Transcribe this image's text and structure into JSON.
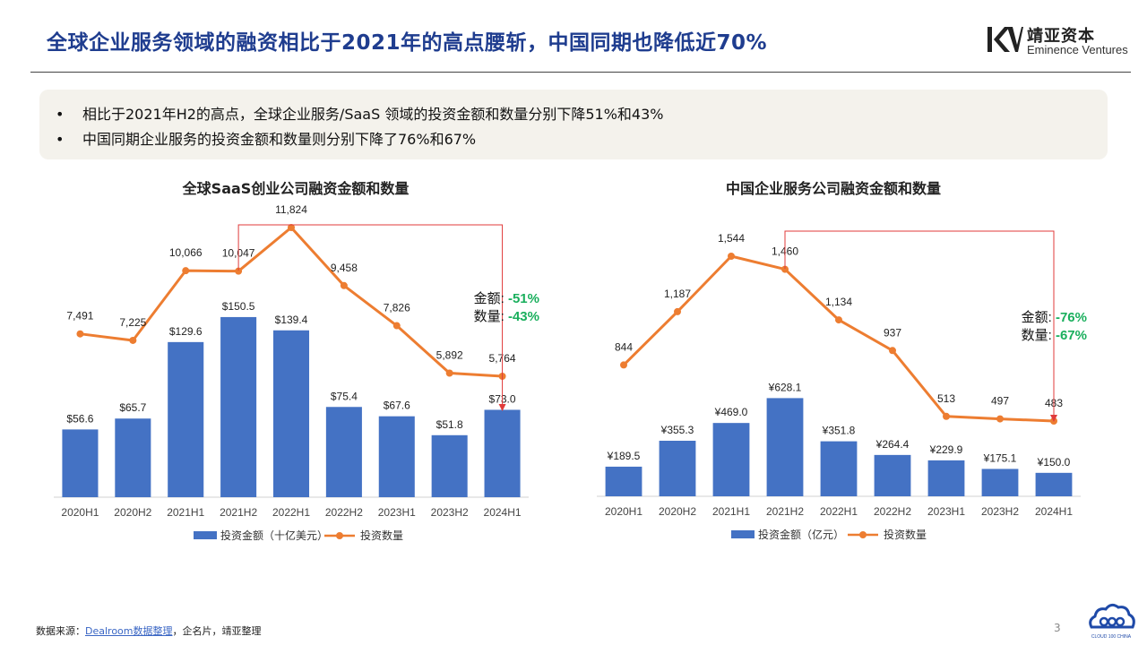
{
  "header": {
    "title": "全球企业服务领域的融资相比于2021年的高点腰斩，中国同期也降低近70%",
    "logo_cn": "靖亚资本",
    "logo_en": "Eminence Ventures"
  },
  "summary": {
    "bullet": "•",
    "points": [
      "相比于2021年H2的高点，全球企业服务/SaaS 领域的投资金额和数量分别下降51%和43%",
      "中国同期企业服务的投资金额和数量则分别下降了76%和67%"
    ]
  },
  "chart_data": [
    {
      "type": "bar",
      "title": "全球SaaS创业公司融资金额和数量",
      "categories": [
        "2020H1",
        "2020H2",
        "2021H1",
        "2021H2",
        "2022H1",
        "2022H2",
        "2023H1",
        "2023H2",
        "2024H1"
      ],
      "series": [
        {
          "name": "投资金额（十亿美元）",
          "type": "bar",
          "values": [
            56.6,
            65.7,
            129.6,
            150.5,
            139.4,
            75.4,
            67.6,
            51.8,
            73.0
          ],
          "labels": [
            "$56.6",
            "$65.7",
            "$129.6",
            "$150.5",
            "$139.4",
            "$75.4",
            "$67.6",
            "$51.8",
            "$73.0"
          ],
          "color": "#4472c4"
        },
        {
          "name": "投资数量",
          "type": "line",
          "values": [
            7491,
            7225,
            10066,
            10047,
            11824,
            9458,
            7826,
            5892,
            5764
          ],
          "labels": [
            "7,491",
            "7,225",
            "10,066",
            "10,047",
            "11,824",
            "9,458",
            "7,826",
            "5,892",
            "5,764"
          ],
          "color": "#ed7d31"
        }
      ],
      "annotation": {
        "amount_label": "金额: ",
        "amount_value": "-51%",
        "count_label": "数量: ",
        "count_value": "-43%",
        "value_color": "#1aaf5d",
        "bracket_from": "2021H2",
        "bracket_to": "2024H1",
        "bracket_color": "#e03b3b"
      },
      "legend": "bottom"
    },
    {
      "type": "bar",
      "title": "中国企业服务公司融资金额和数量",
      "categories": [
        "2020H1",
        "2020H2",
        "2021H1",
        "2021H2",
        "2022H1",
        "2022H2",
        "2023H1",
        "2023H2",
        "2024H1"
      ],
      "series": [
        {
          "name": "投资金额（亿元）",
          "type": "bar",
          "values": [
            189.5,
            355.3,
            469.0,
            628.1,
            351.8,
            264.4,
            229.9,
            175.1,
            150.0
          ],
          "labels": [
            "¥189.5",
            "¥355.3",
            "¥469.0",
            "¥628.1",
            "¥351.8",
            "¥264.4",
            "¥229.9",
            "¥175.1",
            "¥150.0"
          ],
          "color": "#4472c4"
        },
        {
          "name": "投资数量",
          "type": "line",
          "values": [
            844,
            1187,
            1544,
            1460,
            1134,
            937,
            513,
            497,
            483
          ],
          "labels": [
            "844",
            "1,187",
            "1,544",
            "1,460",
            "1,134",
            "937",
            "513",
            "497",
            "483"
          ],
          "color": "#ed7d31"
        }
      ],
      "annotation": {
        "amount_label": "金额: ",
        "amount_value": "-76%",
        "count_label": "数量: ",
        "count_value": "-67%",
        "value_color": "#1aaf5d",
        "bracket_from": "2021H2",
        "bracket_to": "2024H1",
        "bracket_color": "#e03b3b"
      },
      "legend": "bottom"
    }
  ],
  "footer": {
    "prefix": "数据来源：",
    "link": "Dealroom数据整理",
    "suffix": "，企名片，靖亚整理",
    "page": "3",
    "badge": "CLOUD 100 CHINA"
  }
}
